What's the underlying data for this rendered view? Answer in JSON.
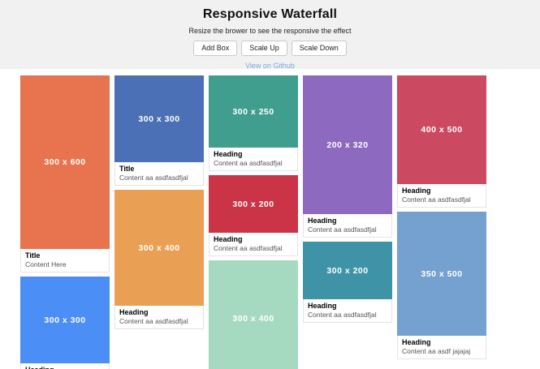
{
  "header": {
    "title": "Responsive Waterfall",
    "subtitle": "Resize the brower to see the responsive the effect",
    "buttons": [
      {
        "label": "Add Box"
      },
      {
        "label": "Scale Up"
      },
      {
        "label": "Scale Down"
      }
    ],
    "link_label": "View on Github"
  },
  "colors": {
    "header_bg": "#f1f1f1",
    "link": "#74a9d8"
  },
  "columns": [
    {
      "cards": [
        {
          "dim": "300 x 600",
          "color": "#e8744f",
          "heading": "Title",
          "content": "Content Here"
        },
        {
          "dim": "300 x 300",
          "color": "#4b8ef5",
          "heading": "Heading",
          "content": null
        }
      ]
    },
    {
      "cards": [
        {
          "dim": "300 x 300",
          "color": "#4c70b5",
          "heading": "Title",
          "content": "Content aa asdfasdfjal"
        },
        {
          "dim": "300 x 400",
          "color": "#e9a054",
          "heading": "Heading",
          "content": "Content aa asdfasdfjal"
        }
      ]
    },
    {
      "cards": [
        {
          "dim": "300 x 250",
          "color": "#3f9e8e",
          "heading": "Heading",
          "content": "Content aa asdfasdfjal"
        },
        {
          "dim": "300 x 200",
          "color": "#cb3347",
          "heading": "Heading",
          "content": "Content aa asdfasdfjal"
        },
        {
          "dim": "300 x 400",
          "color": "#a6dac0",
          "heading": null,
          "content": null
        }
      ]
    },
    {
      "cards": [
        {
          "dim": "200 x 320",
          "color": "#8d69c0",
          "heading": "Heading",
          "content": "Content aa asdfasdfjal"
        },
        {
          "dim": "300 x 200",
          "color": "#3e93a6",
          "heading": "Heading",
          "content": "Content aa asdfasdfjal"
        }
      ]
    },
    {
      "cards": [
        {
          "dim": "400 x 500",
          "color": "#cb4a62",
          "heading": "Heading",
          "content": "Content aa asdfasdfjal"
        },
        {
          "dim": "350 x 500",
          "color": "#75a1d0",
          "heading": "Heading",
          "content": "Content aa asdf jajajaj"
        }
      ]
    }
  ]
}
